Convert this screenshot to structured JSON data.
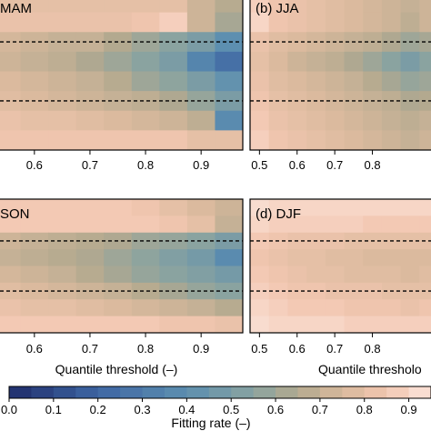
{
  "colorbar": {
    "title": "Fitting rate (–)",
    "ticks": [
      0.0,
      0.1,
      0.2,
      0.3,
      0.4,
      0.5,
      0.6,
      0.7,
      0.8,
      0.9
    ],
    "tick_labels": [
      "0.0",
      "0.1",
      "0.2",
      "0.3",
      "0.4",
      "0.5",
      "0.6",
      "0.7",
      "0.8",
      "0.9"
    ],
    "range": [
      0.0,
      0.95
    ],
    "color_stops": [
      {
        "v": 0.0,
        "c": "#1f2d6b"
      },
      {
        "v": 0.2,
        "c": "#3e66a3"
      },
      {
        "v": 0.4,
        "c": "#5d8fb0"
      },
      {
        "v": 0.55,
        "c": "#8aa3a0"
      },
      {
        "v": 0.65,
        "c": "#b3a98f"
      },
      {
        "v": 0.75,
        "c": "#d8b99c"
      },
      {
        "v": 0.85,
        "c": "#f2c6b0"
      },
      {
        "v": 0.95,
        "c": "#fbe5dc"
      }
    ]
  },
  "chart_data": [
    {
      "type": "heatmap",
      "title": "(a) MAM",
      "title_visible": "MAM",
      "xlabel": "",
      "x": [
        0.55,
        0.6,
        0.65,
        0.7,
        0.75,
        0.8,
        0.85,
        0.9,
        0.95
      ],
      "xtick_values": [
        0.6,
        0.7,
        0.8,
        0.9
      ],
      "xtick_labels": [
        "0.6",
        "0.7",
        "0.8",
        "0.9"
      ],
      "xlim": [
        0.525,
        0.975
      ],
      "rows": 8,
      "dashed_rows": [
        2,
        5
      ],
      "values": [
        [
          0.8,
          0.8,
          0.8,
          0.8,
          0.8,
          0.8,
          0.8,
          0.72,
          0.66
        ],
        [
          0.82,
          0.82,
          0.82,
          0.82,
          0.82,
          0.84,
          0.88,
          0.72,
          0.62
        ],
        [
          0.74,
          0.72,
          0.7,
          0.7,
          0.65,
          0.6,
          0.55,
          0.5,
          0.4
        ],
        [
          0.72,
          0.7,
          0.68,
          0.64,
          0.6,
          0.55,
          0.5,
          0.35,
          0.25
        ],
        [
          0.76,
          0.74,
          0.72,
          0.7,
          0.66,
          0.6,
          0.56,
          0.5,
          0.42
        ],
        [
          0.78,
          0.76,
          0.74,
          0.72,
          0.7,
          0.68,
          0.64,
          0.58,
          0.5
        ],
        [
          0.82,
          0.8,
          0.8,
          0.78,
          0.76,
          0.74,
          0.72,
          0.68,
          0.38
        ],
        [
          0.84,
          0.84,
          0.84,
          0.84,
          0.84,
          0.84,
          0.84,
          0.8,
          0.8
        ]
      ]
    },
    {
      "type": "heatmap",
      "title": "(b) JJA",
      "xlabel": "",
      "x": [
        0.5,
        0.55,
        0.6,
        0.65,
        0.7,
        0.75,
        0.8,
        0.85,
        0.9,
        0.95
      ],
      "xtick_values": [
        0.5,
        0.6,
        0.7,
        0.8
      ],
      "xtick_labels": [
        "0.5",
        "0.6",
        "0.7",
        "0.8"
      ],
      "xlim": [
        0.475,
        0.975
      ],
      "rows": 8,
      "dashed_rows": [
        2,
        5
      ],
      "values": [
        [
          0.88,
          0.84,
          0.82,
          0.8,
          0.78,
          0.76,
          0.74,
          0.72,
          0.7,
          0.72
        ],
        [
          0.9,
          0.84,
          0.82,
          0.8,
          0.78,
          0.76,
          0.74,
          0.72,
          0.68,
          0.72
        ],
        [
          0.82,
          0.78,
          0.76,
          0.74,
          0.72,
          0.7,
          0.68,
          0.64,
          0.6,
          0.62
        ],
        [
          0.8,
          0.76,
          0.72,
          0.7,
          0.68,
          0.64,
          0.6,
          0.55,
          0.5,
          0.55
        ],
        [
          0.82,
          0.78,
          0.76,
          0.74,
          0.72,
          0.7,
          0.66,
          0.62,
          0.58,
          0.6
        ],
        [
          0.84,
          0.8,
          0.78,
          0.76,
          0.74,
          0.72,
          0.7,
          0.68,
          0.64,
          0.65
        ],
        [
          0.86,
          0.82,
          0.8,
          0.78,
          0.76,
          0.74,
          0.72,
          0.7,
          0.68,
          0.7
        ],
        [
          0.88,
          0.84,
          0.82,
          0.8,
          0.78,
          0.76,
          0.74,
          0.72,
          0.7,
          0.72
        ]
      ]
    },
    {
      "type": "heatmap",
      "title": "(c) SON",
      "title_visible": "SON",
      "xlabel": "Quantile threshold (–)",
      "x": [
        0.55,
        0.6,
        0.65,
        0.7,
        0.75,
        0.8,
        0.85,
        0.9,
        0.95
      ],
      "xtick_values": [
        0.6,
        0.7,
        0.8,
        0.9
      ],
      "xtick_labels": [
        "0.6",
        "0.7",
        "0.8",
        "0.9"
      ],
      "xlim": [
        0.525,
        0.975
      ],
      "rows": 8,
      "dashed_rows": [
        2,
        5
      ],
      "values": [
        [
          0.86,
          0.86,
          0.86,
          0.86,
          0.86,
          0.84,
          0.8,
          0.76,
          0.72
        ],
        [
          0.86,
          0.86,
          0.86,
          0.86,
          0.86,
          0.86,
          0.84,
          0.8,
          0.7
        ],
        [
          0.72,
          0.7,
          0.68,
          0.66,
          0.64,
          0.6,
          0.58,
          0.55,
          0.5
        ],
        [
          0.7,
          0.68,
          0.66,
          0.64,
          0.6,
          0.56,
          0.52,
          0.48,
          0.38
        ],
        [
          0.74,
          0.72,
          0.7,
          0.66,
          0.62,
          0.58,
          0.55,
          0.52,
          0.48
        ],
        [
          0.78,
          0.76,
          0.74,
          0.72,
          0.7,
          0.66,
          0.62,
          0.58,
          0.55
        ],
        [
          0.82,
          0.8,
          0.8,
          0.78,
          0.76,
          0.74,
          0.72,
          0.7,
          0.66
        ],
        [
          0.86,
          0.86,
          0.86,
          0.86,
          0.86,
          0.86,
          0.84,
          0.84,
          0.82
        ]
      ]
    },
    {
      "type": "heatmap",
      "title": "(d) DJF",
      "xlabel": "Quantile threshold (–)",
      "xlabel_visible": "Quantile thresholo",
      "x": [
        0.5,
        0.55,
        0.6,
        0.65,
        0.7,
        0.75,
        0.8,
        0.85,
        0.9,
        0.95
      ],
      "xtick_values": [
        0.5,
        0.6,
        0.7,
        0.8
      ],
      "xtick_labels": [
        "0.5",
        "0.6",
        "0.7",
        "0.8"
      ],
      "xlim": [
        0.475,
        0.975
      ],
      "rows": 8,
      "dashed_rows": [
        2,
        5
      ],
      "values": [
        [
          0.92,
          0.9,
          0.9,
          0.9,
          0.9,
          0.9,
          0.9,
          0.9,
          0.9,
          0.9
        ],
        [
          0.9,
          0.88,
          0.88,
          0.88,
          0.88,
          0.88,
          0.86,
          0.86,
          0.86,
          0.86
        ],
        [
          0.86,
          0.84,
          0.82,
          0.82,
          0.82,
          0.8,
          0.8,
          0.8,
          0.8,
          0.8
        ],
        [
          0.84,
          0.82,
          0.8,
          0.8,
          0.78,
          0.78,
          0.76,
          0.76,
          0.76,
          0.76
        ],
        [
          0.86,
          0.84,
          0.82,
          0.8,
          0.8,
          0.78,
          0.78,
          0.78,
          0.76,
          0.78
        ],
        [
          0.88,
          0.86,
          0.84,
          0.84,
          0.82,
          0.82,
          0.82,
          0.8,
          0.8,
          0.8
        ],
        [
          0.9,
          0.88,
          0.86,
          0.86,
          0.86,
          0.84,
          0.84,
          0.84,
          0.82,
          0.84
        ],
        [
          0.92,
          0.9,
          0.9,
          0.9,
          0.9,
          0.88,
          0.88,
          0.88,
          0.88,
          0.88
        ]
      ]
    }
  ]
}
